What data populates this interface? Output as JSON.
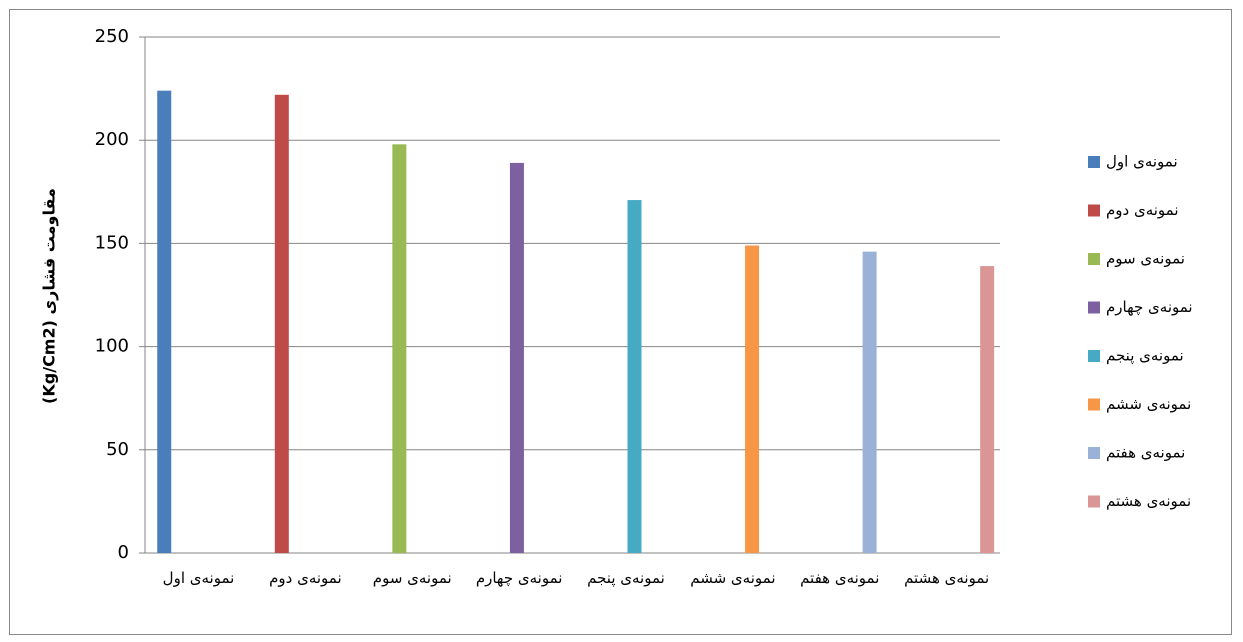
{
  "chart_data": {
    "type": "bar",
    "y_label": "مقاومت فشاری (Kg/Cm2)",
    "categories": [
      "نمونه‌ی اول",
      "نمونه‌ی دوم",
      "نمونه‌ی سوم",
      "نمونه‌ی چهارم",
      "نمونه‌ی پنجم",
      "نمونه‌ی ششم",
      "نمونه‌ی هفتم",
      "نمونه‌ی هشتم"
    ],
    "series": [
      {
        "name": "نمونه‌ی اول",
        "color": "#4a7ebb",
        "values": [
          224,
          null,
          null,
          null,
          null,
          null,
          null,
          null
        ]
      },
      {
        "name": "نمونه‌ی دوم",
        "color": "#be4b48",
        "values": [
          null,
          222,
          null,
          null,
          null,
          null,
          null,
          null
        ]
      },
      {
        "name": "نمونه‌ی سوم",
        "color": "#98b954",
        "values": [
          null,
          null,
          198,
          null,
          null,
          null,
          null,
          null
        ]
      },
      {
        "name": "نمونه‌ی چهارم",
        "color": "#7d60a0",
        "values": [
          null,
          null,
          null,
          189,
          null,
          null,
          null,
          null
        ]
      },
      {
        "name": "نمونه‌ی پنجم",
        "color": "#46aac5",
        "values": [
          null,
          null,
          null,
          null,
          171,
          null,
          null,
          null
        ]
      },
      {
        "name": "نمونه‌ی ششم",
        "color": "#f79646",
        "values": [
          null,
          null,
          null,
          null,
          null,
          149,
          null,
          null
        ]
      },
      {
        "name": "نمونه‌ی هفتم",
        "color": "#9bb2d8",
        "values": [
          null,
          null,
          null,
          null,
          null,
          null,
          146,
          null
        ]
      },
      {
        "name": "نمونه‌ی هشتم",
        "color": "#d99694",
        "values": [
          null,
          null,
          null,
          null,
          null,
          null,
          null,
          139
        ]
      }
    ],
    "ylim": [
      0,
      250
    ],
    "yticks": [
      0,
      50,
      100,
      150,
      200,
      250
    ],
    "grid": true,
    "legend": "right"
  }
}
